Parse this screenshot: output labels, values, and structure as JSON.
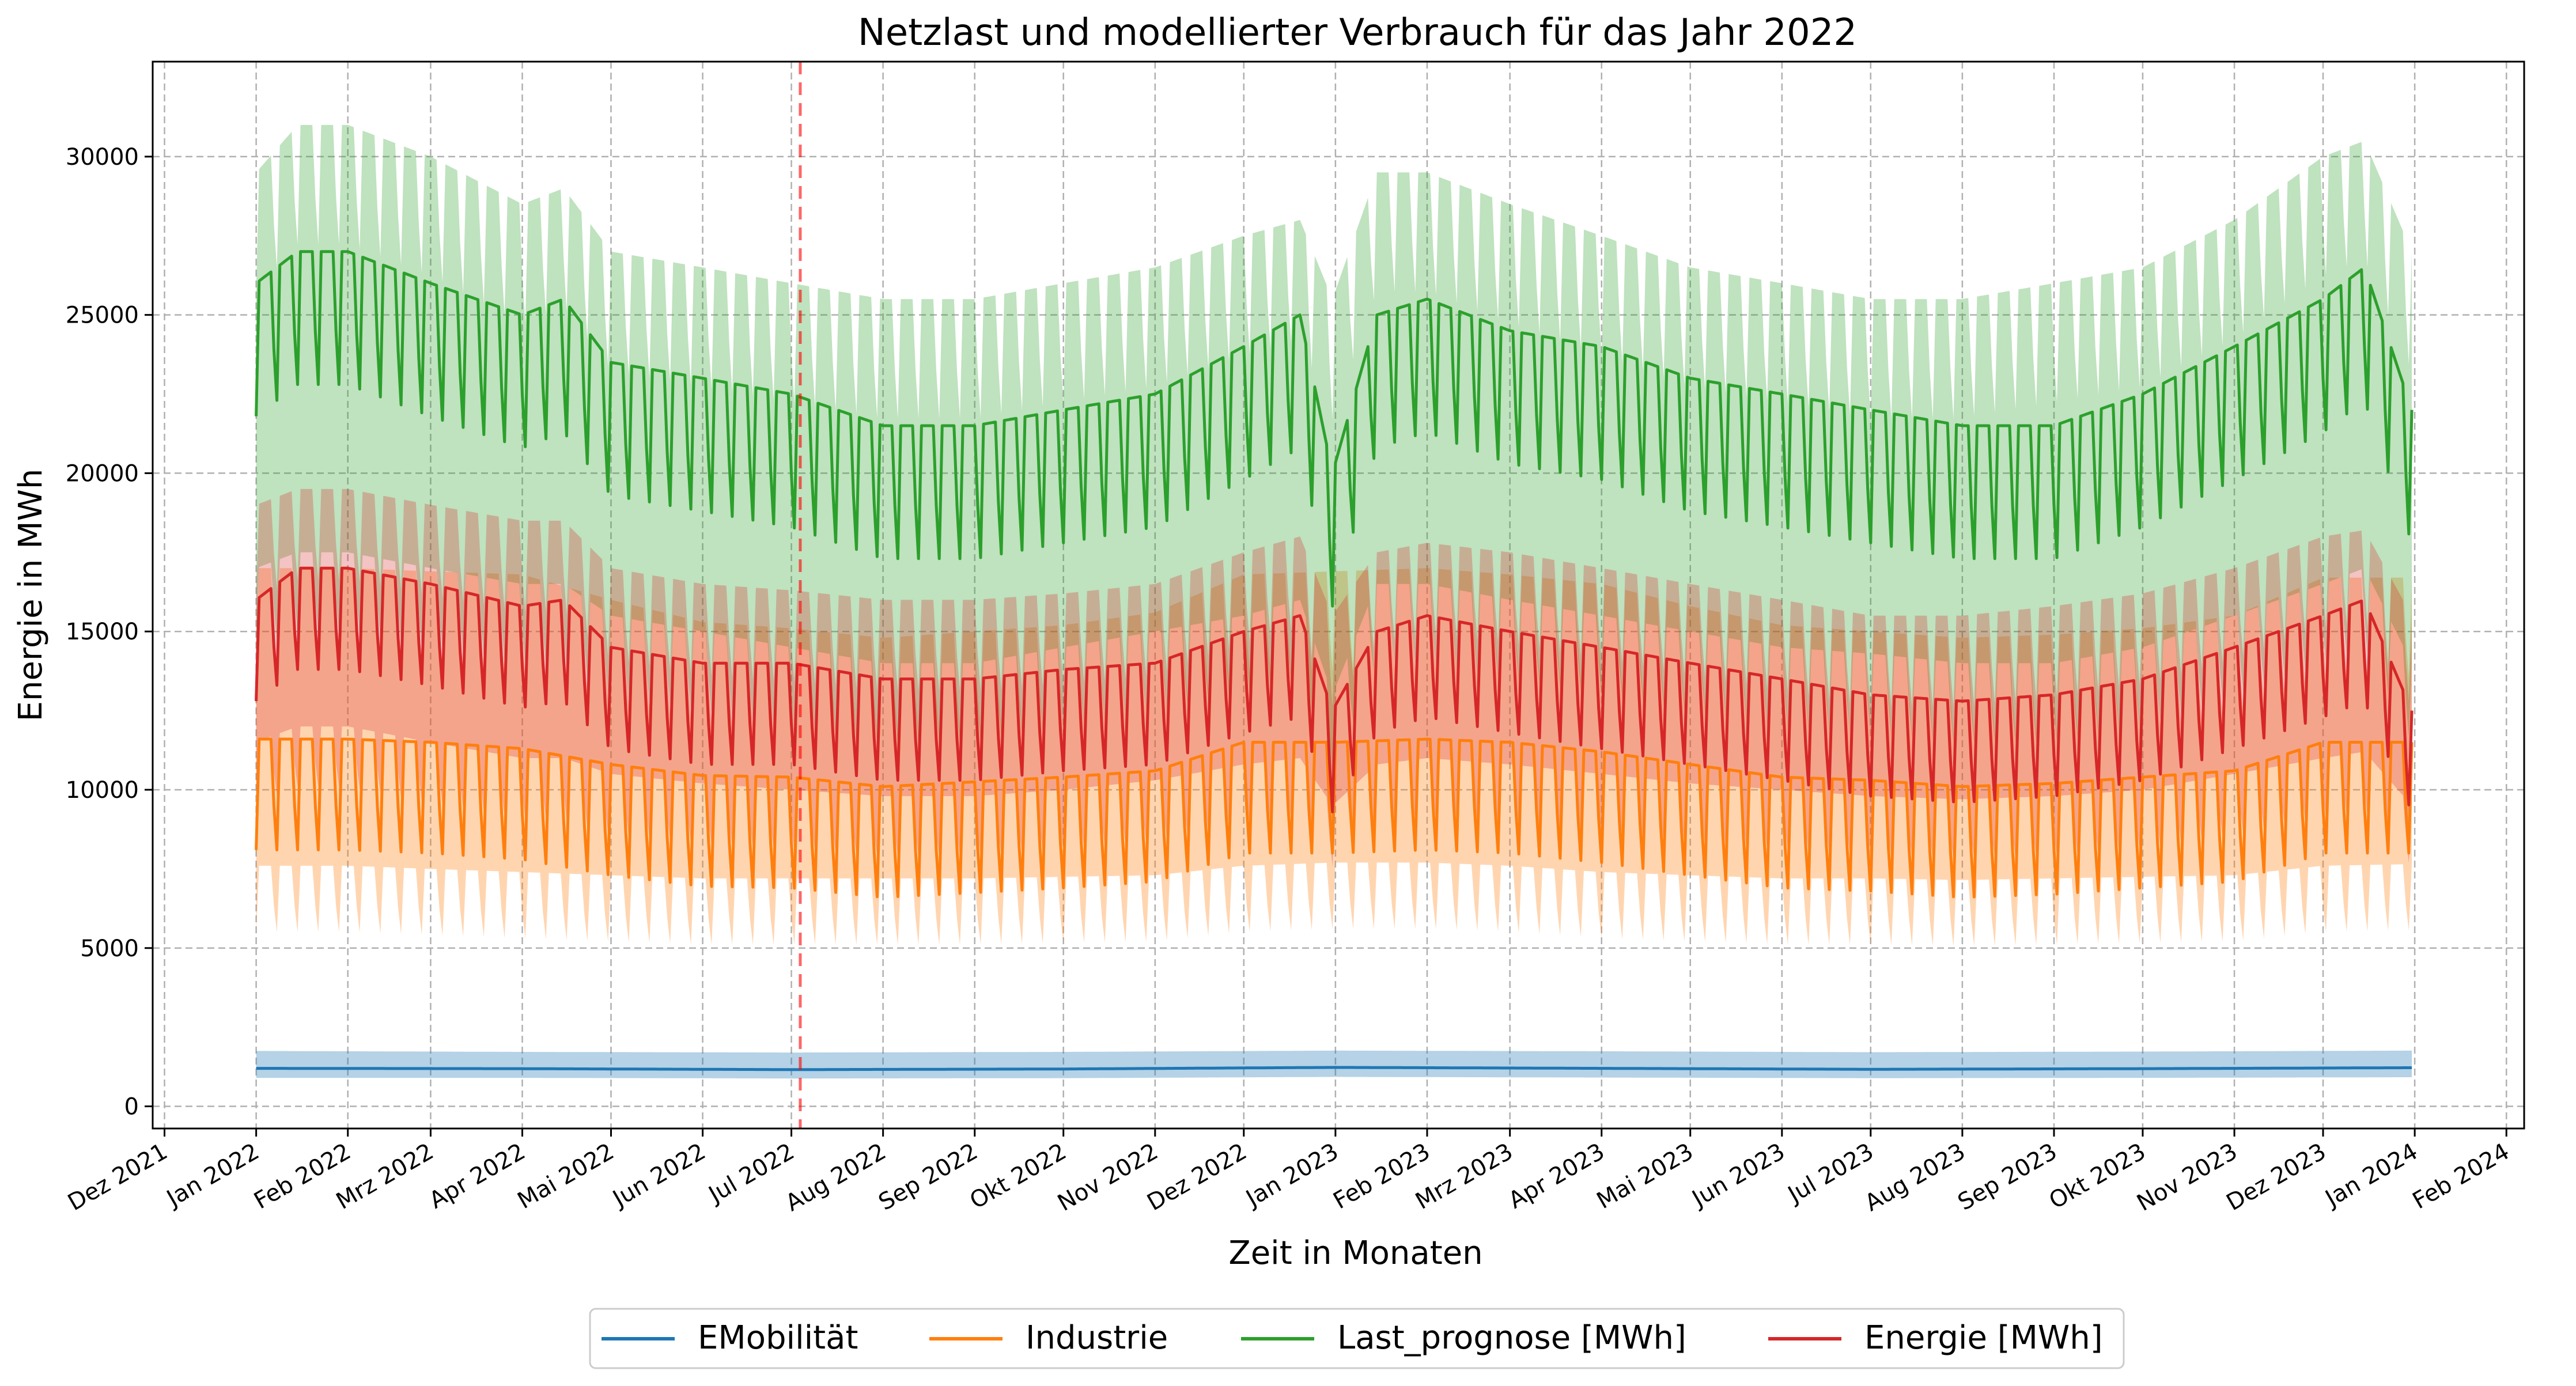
{
  "chart_data": {
    "type": "line",
    "title": "Netzlast und modellierter Verbrauch für das Jahr 2022",
    "xlabel": "Zeit in Monaten",
    "ylabel": "Energie in MWh",
    "x_range": [
      "2021-11-27",
      "2024-02-07"
    ],
    "ylim": [
      -700,
      33000
    ],
    "x_ticks": [
      {
        "date": "2021-12-01",
        "label": "Dez 2021"
      },
      {
        "date": "2022-01-01",
        "label": "Jan 2022"
      },
      {
        "date": "2022-02-01",
        "label": "Feb 2022"
      },
      {
        "date": "2022-03-01",
        "label": "Mrz 2022"
      },
      {
        "date": "2022-04-01",
        "label": "Apr 2022"
      },
      {
        "date": "2022-05-01",
        "label": "Mai 2022"
      },
      {
        "date": "2022-06-01",
        "label": "Jun 2022"
      },
      {
        "date": "2022-07-01",
        "label": "Jul 2022"
      },
      {
        "date": "2022-08-01",
        "label": "Aug 2022"
      },
      {
        "date": "2022-09-01",
        "label": "Sep 2022"
      },
      {
        "date": "2022-10-01",
        "label": "Okt 2022"
      },
      {
        "date": "2022-11-01",
        "label": "Nov 2022"
      },
      {
        "date": "2022-12-01",
        "label": "Dez 2022"
      },
      {
        "date": "2023-01-01",
        "label": "Jan 2023"
      },
      {
        "date": "2023-02-01",
        "label": "Feb 2023"
      },
      {
        "date": "2023-03-01",
        "label": "Mrz 2023"
      },
      {
        "date": "2023-04-01",
        "label": "Apr 2023"
      },
      {
        "date": "2023-05-01",
        "label": "Mai 2023"
      },
      {
        "date": "2023-06-01",
        "label": "Jun 2023"
      },
      {
        "date": "2023-07-01",
        "label": "Jul 2023"
      },
      {
        "date": "2023-08-01",
        "label": "Aug 2023"
      },
      {
        "date": "2023-09-01",
        "label": "Sep 2023"
      },
      {
        "date": "2023-10-01",
        "label": "Okt 2023"
      },
      {
        "date": "2023-11-01",
        "label": "Nov 2023"
      },
      {
        "date": "2023-12-01",
        "label": "Dez 2023"
      },
      {
        "date": "2024-01-01",
        "label": "Jan 2024"
      },
      {
        "date": "2024-02-01",
        "label": "Feb 2024"
      }
    ],
    "y_ticks": [
      0,
      5000,
      10000,
      15000,
      20000,
      25000,
      30000
    ],
    "grid": true,
    "vline": {
      "date": "2022-07-04",
      "color": "#ff0000",
      "style": "dashed"
    },
    "legend": {
      "placement": "bottom-center"
    },
    "series": [
      {
        "name": "EMobilität",
        "color": "#1f77b4",
        "x": [
          "2022-01-01",
          "2022-04-01",
          "2022-07-01",
          "2022-10-01",
          "2023-01-01",
          "2023-04-01",
          "2023-07-01",
          "2023-10-01",
          "2023-12-31"
        ],
        "y": [
          1200,
          1190,
          1160,
          1180,
          1230,
          1200,
          1170,
          1190,
          1220
        ],
        "band_low": [
          900,
          900,
          880,
          890,
          930,
          910,
          890,
          900,
          920
        ],
        "band_high": [
          1750,
          1720,
          1700,
          1720,
          1760,
          1740,
          1710,
          1730,
          1760
        ],
        "weekly_dip": 0
      },
      {
        "name": "Industrie",
        "color": "#ff7f0e",
        "x": [
          "2022-01-01",
          "2022-02-01",
          "2022-03-01",
          "2022-04-01",
          "2022-05-01",
          "2022-06-01",
          "2022-07-01",
          "2022-08-01",
          "2022-09-01",
          "2022-10-01",
          "2022-11-01",
          "2022-12-01",
          "2023-01-01",
          "2023-02-01",
          "2023-03-01",
          "2023-04-01",
          "2023-05-01",
          "2023-06-01",
          "2023-07-01",
          "2023-08-01",
          "2023-09-01",
          "2023-10-01",
          "2023-11-01",
          "2023-12-01",
          "2023-12-31"
        ],
        "y": [
          11600,
          11600,
          11500,
          11300,
          10800,
          10450,
          10400,
          10100,
          10250,
          10400,
          10600,
          11500,
          11500,
          11600,
          11500,
          11200,
          10800,
          10400,
          10300,
          10100,
          10200,
          10400,
          10600,
          11500,
          11500
        ],
        "band_low": [
          7600,
          7600,
          7500,
          7400,
          7300,
          7200,
          7200,
          7200,
          7200,
          7250,
          7300,
          7600,
          7700,
          7700,
          7600,
          7400,
          7300,
          7200,
          7200,
          7150,
          7200,
          7250,
          7300,
          7600,
          7650
        ],
        "band_high": [
          17000,
          17000,
          16900,
          16800,
          16000,
          15300,
          15100,
          14800,
          15000,
          15200,
          15600,
          16800,
          16900,
          17000,
          16800,
          16500,
          15800,
          15200,
          15000,
          14800,
          14900,
          15100,
          15500,
          16700,
          16700
        ],
        "weekly_dip": 3500
      },
      {
        "name": "Last_prognose [MWh]",
        "color": "#2ca02c",
        "x": [
          "2022-01-01",
          "2022-01-15",
          "2022-02-01",
          "2022-03-01",
          "2022-04-01",
          "2022-04-15",
          "2022-05-01",
          "2022-06-01",
          "2022-07-01",
          "2022-08-01",
          "2022-09-01",
          "2022-10-01",
          "2022-11-01",
          "2022-12-01",
          "2022-12-20",
          "2022-12-31",
          "2023-01-15",
          "2023-02-01",
          "2023-03-01",
          "2023-04-01",
          "2023-05-01",
          "2023-06-01",
          "2023-07-01",
          "2023-08-01",
          "2023-09-01",
          "2023-10-01",
          "2023-11-01",
          "2023-12-01",
          "2023-12-15",
          "2023-12-31"
        ],
        "y": [
          26000,
          27000,
          27000,
          26000,
          25000,
          25500,
          23500,
          23000,
          22500,
          21500,
          21500,
          22000,
          22500,
          24000,
          25000,
          20000,
          25000,
          25500,
          24500,
          24000,
          23000,
          22500,
          22000,
          21500,
          21500,
          22500,
          24000,
          25500,
          26500,
          22000
        ],
        "band_low": [
          17000,
          17500,
          17500,
          17000,
          16500,
          16500,
          15500,
          15000,
          14500,
          14000,
          14000,
          14500,
          15000,
          15500,
          16000,
          13000,
          16500,
          16500,
          16000,
          15500,
          15000,
          14500,
          14300,
          14000,
          14000,
          14500,
          15500,
          16500,
          17000,
          14000
        ],
        "band_high": [
          29500,
          31000,
          31000,
          30000,
          28500,
          29000,
          27000,
          26500,
          26000,
          25500,
          25500,
          26000,
          26500,
          27500,
          28000,
          25500,
          29500,
          29500,
          28500,
          27500,
          26500,
          26000,
          25500,
          25500,
          26000,
          26500,
          28000,
          30000,
          30500,
          27000
        ],
        "weekly_dip": 4200
      },
      {
        "name": "Energie [MWh]",
        "color": "#d62728",
        "x": [
          "2022-01-01",
          "2022-01-15",
          "2022-02-01",
          "2022-03-01",
          "2022-04-01",
          "2022-04-15",
          "2022-05-01",
          "2022-06-01",
          "2022-07-01",
          "2022-08-01",
          "2022-09-01",
          "2022-10-01",
          "2022-11-01",
          "2022-12-01",
          "2022-12-20",
          "2022-12-31",
          "2023-01-15",
          "2023-02-01",
          "2023-03-01",
          "2023-04-01",
          "2023-05-01",
          "2023-06-01",
          "2023-07-01",
          "2023-08-01",
          "2023-09-01",
          "2023-10-01",
          "2023-11-01",
          "2023-12-01",
          "2023-12-15",
          "2023-12-31"
        ],
        "y": [
          16000,
          17000,
          17000,
          16500,
          15800,
          16000,
          14500,
          14000,
          14000,
          13500,
          13500,
          13800,
          14000,
          15000,
          15500,
          12500,
          15000,
          15500,
          15000,
          14500,
          14000,
          13500,
          13000,
          12800,
          13000,
          13500,
          14500,
          15500,
          16000,
          12500
        ],
        "band_low": [
          11500,
          12000,
          12000,
          11500,
          11000,
          11000,
          10500,
          10200,
          10000,
          9800,
          9800,
          10000,
          10300,
          10800,
          11000,
          9500,
          10800,
          11000,
          10800,
          10500,
          10200,
          10000,
          9800,
          9700,
          9800,
          10000,
          10500,
          11000,
          11200,
          9500
        ],
        "band_high": [
          19000,
          19500,
          19500,
          19000,
          18500,
          18500,
          17000,
          16500,
          16300,
          16000,
          16000,
          16200,
          16500,
          17500,
          18000,
          15500,
          17500,
          17800,
          17500,
          17000,
          16500,
          16000,
          15500,
          15500,
          15800,
          16200,
          17000,
          18000,
          18200,
          15500
        ],
        "weekly_dip": 3200
      }
    ]
  }
}
